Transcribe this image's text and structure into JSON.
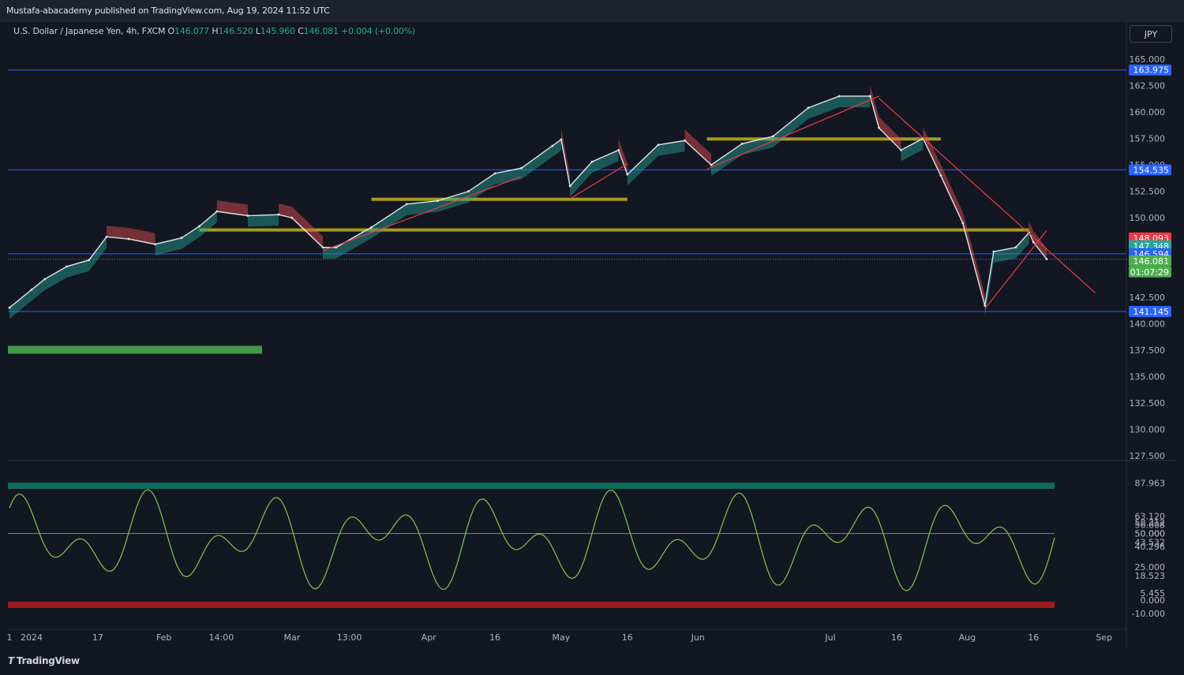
{
  "header": {
    "published": "Mustafa-abacademy published on TradingView.com, Aug 19, 2024 11:52 UTC"
  },
  "symbol": {
    "name": "U.S. Dollar / Japanese Yen, 4h, FXCM",
    "open_label": "O",
    "open": "146.077",
    "high_label": "H",
    "high": "146.520",
    "low_label": "L",
    "low": "145.960",
    "close_label": "C",
    "close": "146.081",
    "change": "+0.004 (+0.00%)"
  },
  "currency_button": "JPY",
  "footer": {
    "brand": "TradingView"
  },
  "colors": {
    "background": "#131722",
    "up": "#26a69a",
    "down": "#ef5350",
    "level_line": "#2962ff",
    "trend_line": "#f23645",
    "zone": "#c0b31c",
    "zone_green": "#4caf50"
  },
  "chart_data": [
    {
      "type": "line",
      "title": "U.S. Dollar / Japanese Yen, 4h, FXCM",
      "x_ticks": [
        "1",
        "2024",
        "17",
        "Feb",
        "14:00",
        "Mar",
        "13:00",
        "Apr",
        "16",
        "May",
        "16",
        "Jun",
        "Jul",
        "16",
        "Aug",
        "16",
        "Sep"
      ],
      "y_ticks": [
        "165.000",
        "162.500",
        "160.000",
        "157.500",
        "155.000",
        "152.500",
        "150.000",
        "147.500",
        "145.000",
        "142.500",
        "140.000",
        "137.500",
        "135.000",
        "132.500",
        "130.000",
        "127.500"
      ],
      "ylim": [
        127.5,
        165.0
      ],
      "series": [
        {
          "x": [
            "2023-12-28",
            "2024-01-02",
            "2024-01-05",
            "2024-01-10",
            "2024-01-15",
            "2024-01-19",
            "2024-01-24",
            "2024-01-30",
            "2024-02-05",
            "2024-02-09",
            "2024-02-13",
            "2024-02-20",
            "2024-02-27",
            "2024-03-01",
            "2024-03-08",
            "2024-03-11",
            "2024-03-19",
            "2024-03-27",
            "2024-04-03",
            "2024-04-10",
            "2024-04-16",
            "2024-04-22",
            "2024-04-29",
            "2024-05-01",
            "2024-05-03",
            "2024-05-08",
            "2024-05-14",
            "2024-05-16",
            "2024-05-23",
            "2024-05-29",
            "2024-06-04",
            "2024-06-11",
            "2024-06-18",
            "2024-06-26",
            "2024-07-03",
            "2024-07-10",
            "2024-07-12",
            "2024-07-17",
            "2024-07-22",
            "2024-07-26",
            "2024-07-31",
            "2024-08-05",
            "2024-08-07",
            "2024-08-12",
            "2024-08-15",
            "2024-08-16",
            "2024-08-19"
          ],
          "values": [
            141.5,
            143.2,
            144.2,
            145.4,
            146.0,
            148.2,
            148.0,
            147.5,
            148.1,
            149.2,
            150.6,
            150.2,
            150.3,
            150.0,
            147.2,
            147.2,
            149.1,
            151.3,
            151.6,
            152.5,
            154.2,
            154.7,
            156.8,
            157.4,
            153.0,
            155.3,
            156.4,
            154.1,
            156.9,
            157.3,
            155.0,
            157.0,
            157.7,
            160.4,
            161.5,
            161.5,
            158.5,
            156.4,
            157.5,
            154.0,
            149.5,
            141.7,
            146.8,
            147.2,
            148.6,
            147.7,
            146.1
          ]
        }
      ],
      "horizontal_levels": [
        "163.975",
        "154.535",
        "146.594",
        "141.145"
      ],
      "price_labels": [
        "163.975",
        "154.535",
        "148.093",
        "147.348",
        "146.594",
        "146.081",
        "01:07:29",
        "141.145"
      ]
    },
    {
      "type": "line",
      "title": "",
      "y_ticks": [
        "87.963",
        "63.120",
        "58.312",
        "56.608",
        "50.000",
        "50.000",
        "43.532",
        "40.296",
        "25.000",
        "18.523",
        "5.455",
        "0.000",
        "-10.000"
      ],
      "ylim": [
        -10,
        100
      ]
    }
  ]
}
